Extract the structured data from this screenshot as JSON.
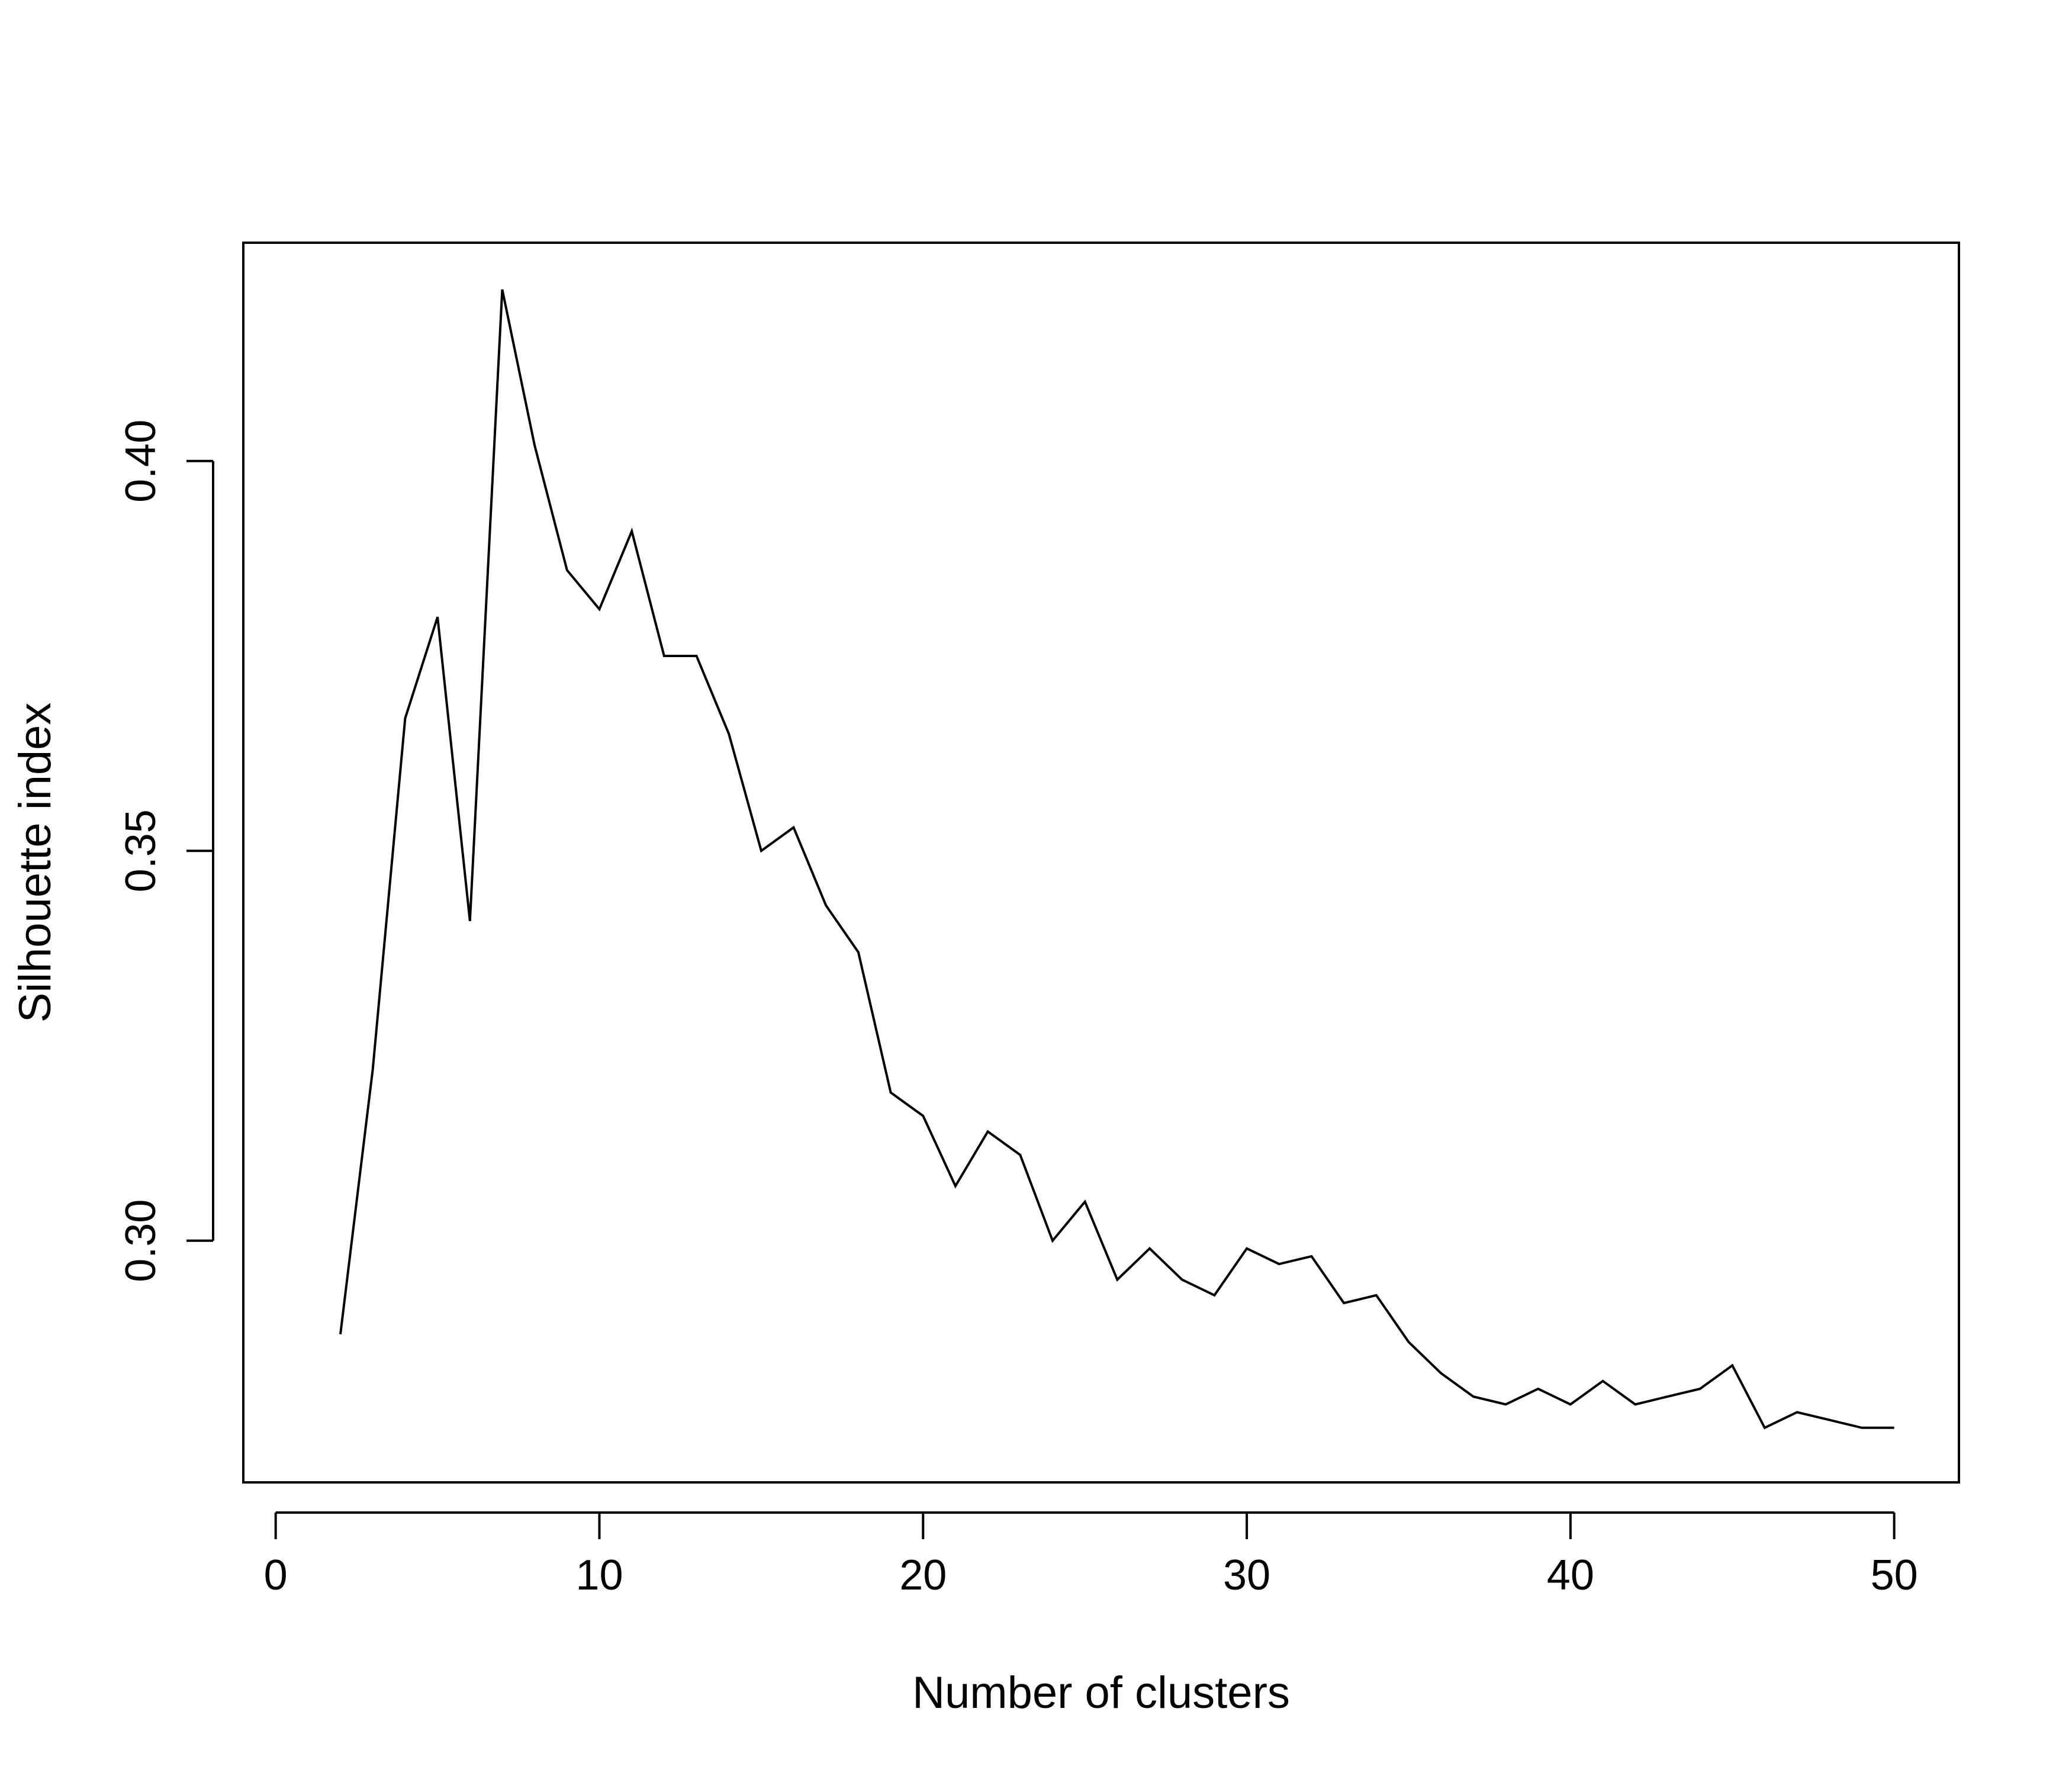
{
  "chart_data": {
    "type": "line",
    "title": "",
    "xlabel": "Number of clusters",
    "ylabel": "Silhouette index",
    "xlim": [
      -1,
      52
    ],
    "ylim": [
      0.269,
      0.428
    ],
    "x_ticks": [
      0,
      10,
      20,
      30,
      40,
      50
    ],
    "x_tick_labels": [
      "0",
      "10",
      "20",
      "30",
      "40",
      "50"
    ],
    "y_ticks": [
      0.3,
      0.35,
      0.4
    ],
    "y_tick_labels": [
      "0.30",
      "0.35",
      "0.40"
    ],
    "grid": false,
    "line_color": "#000000",
    "series": [
      {
        "x": [
          2,
          3,
          4,
          5,
          6,
          7,
          8,
          9,
          10,
          11,
          12,
          13,
          14,
          15,
          16,
          17,
          18,
          19,
          20,
          21,
          22,
          23,
          24,
          25,
          26,
          27,
          28,
          29,
          30,
          31,
          32,
          33,
          34,
          35,
          36,
          37,
          38,
          39,
          40,
          41,
          42,
          43,
          44,
          45,
          46,
          47,
          48,
          49,
          50
        ],
        "values": [
          0.288,
          0.322,
          0.367,
          0.38,
          0.341,
          0.422,
          0.402,
          0.386,
          0.381,
          0.391,
          0.375,
          0.375,
          0.365,
          0.35,
          0.353,
          0.343,
          0.337,
          0.319,
          0.316,
          0.307,
          0.314,
          0.311,
          0.3,
          0.305,
          0.295,
          0.299,
          0.295,
          0.293,
          0.299,
          0.297,
          0.298,
          0.292,
          0.293,
          0.287,
          0.283,
          0.28,
          0.279,
          0.281,
          0.279,
          0.282,
          0.279,
          0.28,
          0.281,
          0.284,
          0.276,
          0.278,
          0.277,
          0.276,
          0.276
        ]
      }
    ]
  }
}
